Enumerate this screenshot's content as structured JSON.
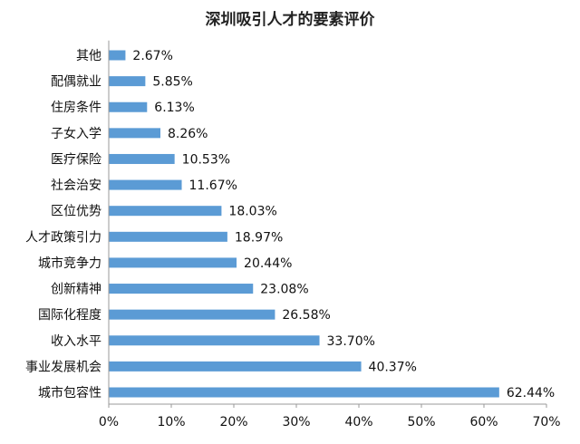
{
  "chart_data": {
    "type": "bar",
    "orientation": "horizontal",
    "title": "深圳吸引人才的要素评价",
    "categories": [
      "其他",
      "配偶就业",
      "住房条件",
      "子女入学",
      "医疗保险",
      "社会治安",
      "区位优势",
      "人才政策引力",
      "城市竞争力",
      "创新精神",
      "国际化程度",
      "收入水平",
      "事业发展机会",
      "城市包容性"
    ],
    "values": [
      2.67,
      5.85,
      6.13,
      8.26,
      10.53,
      11.67,
      18.03,
      18.97,
      20.44,
      23.08,
      26.58,
      33.7,
      40.37,
      62.44
    ],
    "value_labels": [
      "2.67%",
      "5.85%",
      "6.13%",
      "8.26%",
      "10.53%",
      "11.67%",
      "18.03%",
      "18.97%",
      "20.44%",
      "23.08%",
      "26.58%",
      "33.70%",
      "40.37%",
      "62.44%"
    ],
    "xlim": [
      0,
      70
    ],
    "xticks": [
      "0%",
      "10%",
      "20%",
      "30%",
      "40%",
      "50%",
      "60%",
      "70%"
    ],
    "grid": false,
    "legend": "none",
    "bar_color": "#5b9bd5"
  }
}
